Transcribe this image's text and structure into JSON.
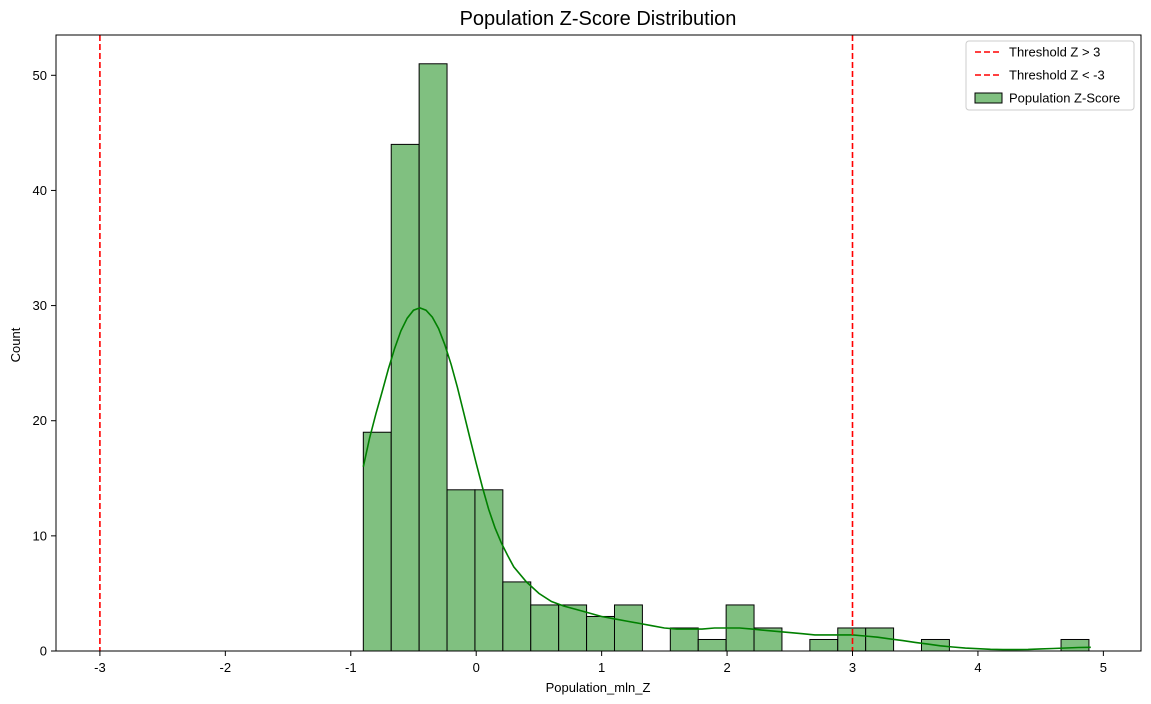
{
  "chart_data": {
    "type": "histogram",
    "title": "Population Z-Score Distribution",
    "xlabel": "Population_mln_Z",
    "ylabel": "Count",
    "xlim": [
      -3.35,
      5.3
    ],
    "ylim": [
      0,
      53.5
    ],
    "xticks": [
      -3,
      -2,
      -1,
      0,
      1,
      2,
      3,
      4,
      5
    ],
    "xtick_labels": [
      "-3",
      "-2",
      "-1",
      "0",
      "1",
      "2",
      "3",
      "4",
      "5"
    ],
    "yticks": [
      0,
      10,
      20,
      30,
      40,
      50
    ],
    "ytick_labels": [
      "0",
      "10",
      "20",
      "30",
      "40",
      "50"
    ],
    "grid": false,
    "legend_position": "top-right",
    "bins": {
      "start": -0.9,
      "width": 0.2225,
      "counts": [
        19,
        44,
        51,
        14,
        14,
        6,
        4,
        4,
        3,
        4,
        0,
        2,
        1,
        4,
        2,
        0,
        1,
        2,
        2,
        0,
        1,
        0,
        0,
        0,
        0,
        1
      ]
    },
    "kde": {
      "x": [
        -0.9,
        -0.85,
        -0.8,
        -0.75,
        -0.7,
        -0.65,
        -0.6,
        -0.55,
        -0.5,
        -0.45,
        -0.4,
        -0.35,
        -0.3,
        -0.25,
        -0.2,
        -0.15,
        -0.1,
        -0.05,
        0.0,
        0.05,
        0.1,
        0.15,
        0.2,
        0.25,
        0.3,
        0.4,
        0.5,
        0.6,
        0.7,
        0.8,
        0.9,
        1.0,
        1.1,
        1.2,
        1.3,
        1.4,
        1.5,
        1.6,
        1.7,
        1.8,
        1.9,
        2.0,
        2.1,
        2.2,
        2.3,
        2.4,
        2.5,
        2.6,
        2.7,
        2.8,
        2.9,
        3.0,
        3.1,
        3.2,
        3.3,
        3.4,
        3.5,
        3.6,
        3.7,
        3.8,
        3.9,
        4.0,
        4.1,
        4.2,
        4.3,
        4.4,
        4.5,
        4.6,
        4.7,
        4.8,
        4.9
      ],
      "y": [
        16,
        18.5,
        20.6,
        22.5,
        24.5,
        26.3,
        27.8,
        28.9,
        29.6,
        29.8,
        29.6,
        29.0,
        28.0,
        26.6,
        24.9,
        22.9,
        20.7,
        18.5,
        16.3,
        14.2,
        12.3,
        10.7,
        9.4,
        8.3,
        7.3,
        6.0,
        5.0,
        4.3,
        3.9,
        3.6,
        3.3,
        3.0,
        2.8,
        2.6,
        2.4,
        2.2,
        2.0,
        1.9,
        1.9,
        1.9,
        2.0,
        2.0,
        2.0,
        1.9,
        1.8,
        1.7,
        1.6,
        1.5,
        1.4,
        1.4,
        1.4,
        1.4,
        1.3,
        1.2,
        1.05,
        0.9,
        0.75,
        0.6,
        0.45,
        0.35,
        0.25,
        0.2,
        0.15,
        0.12,
        0.12,
        0.14,
        0.18,
        0.22,
        0.26,
        0.3,
        0.32
      ]
    },
    "thresholds": [
      {
        "name": "Threshold Z > 3",
        "x": 3
      },
      {
        "name": "Threshold Z < -3",
        "x": -3
      }
    ],
    "series": [
      {
        "name": "Threshold Z > 3",
        "style": "dashed-line",
        "color": "#e41a1c"
      },
      {
        "name": "Threshold Z < -3",
        "style": "dashed-line",
        "color": "#e41a1c"
      },
      {
        "name": "Population Z-Score",
        "style": "bar",
        "color": "#008000"
      }
    ],
    "colors": {
      "bar_fill": "#80c080",
      "bar_edge": "#000000",
      "kde_line": "#008000",
      "threshold_line": "#ff0000",
      "axis": "#000000"
    }
  }
}
